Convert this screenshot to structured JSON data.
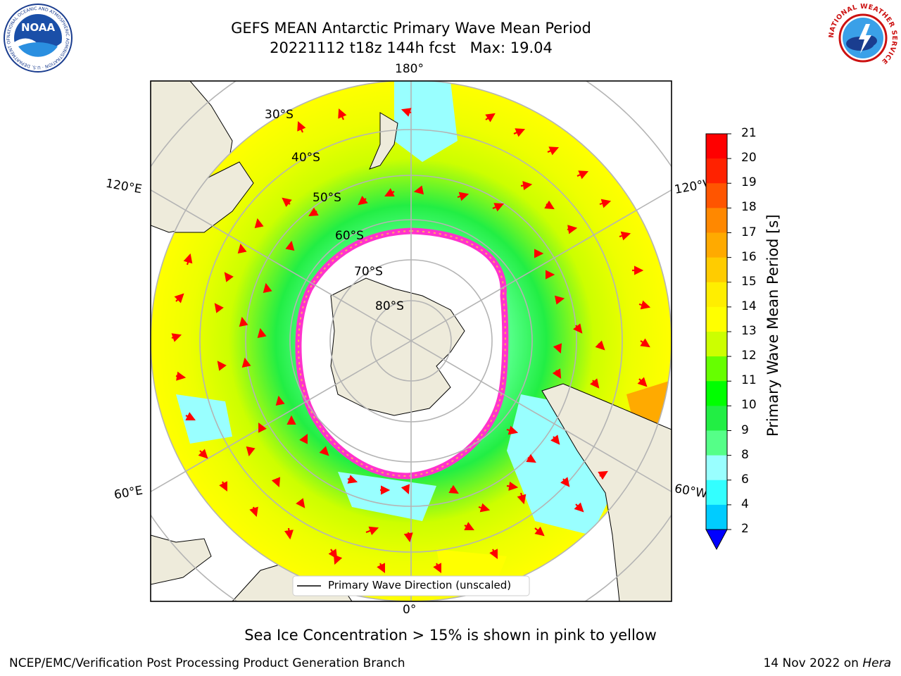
{
  "title": {
    "line1": "GEFS MEAN Antarctic Primary Wave Mean Period",
    "line2": "20221112 t18z 144h fcst   Max: 19.04"
  },
  "map": {
    "projection": "south polar stereographic",
    "longitude_labels": {
      "top": "180°",
      "bottom": "0°",
      "left_upper": "120°E",
      "left_lower": "60°E",
      "right_upper": "120°W",
      "right_lower": "60°W"
    },
    "latitude_labels": [
      "30°S",
      "40°S",
      "50°S",
      "60°S",
      "70°S",
      "80°S"
    ],
    "legend": "Primary Wave Direction (unscaled)",
    "colors": {
      "land": "#eeebdb",
      "ocean_outside": "#ffffff",
      "grid": "#b4b4b4",
      "arrow": "#ff0000",
      "sea_ice": "#ff33cc"
    }
  },
  "colorbar": {
    "label": "Primary Wave Mean Period [s]",
    "ticks": [
      "21",
      "20",
      "19",
      "18",
      "17",
      "16",
      "15",
      "14",
      "13",
      "12",
      "11",
      "10",
      "9",
      "8",
      "6",
      "4",
      "2"
    ],
    "colors": [
      "#0000ff",
      "#0077ff",
      "#00ccff",
      "#33ffff",
      "#99ffff",
      "#55ff88",
      "#22ee44",
      "#00ff00",
      "#66ff00",
      "#ccff00",
      "#ffff00",
      "#ffee00",
      "#ffcc00",
      "#ffaa00",
      "#ff8800",
      "#ff5500",
      "#ff2200",
      "#ff0000"
    ]
  },
  "caption": "Sea Ice Concentration > 15% is shown in pink to yellow",
  "footer": {
    "left": "NCEP/EMC/Verification Post Processing Product Generation Branch",
    "right_prefix": "14 Nov 2022 on ",
    "right_machine": "Hera"
  },
  "logos": {
    "noaa": "NOAA",
    "noaa_ring": "NATIONAL OCEANIC AND ATMOSPHERIC ADMINISTRATION · U.S. DEPARTMENT OF COMMERCE",
    "nws_ring": "NATIONAL WEATHER SERVICE"
  }
}
